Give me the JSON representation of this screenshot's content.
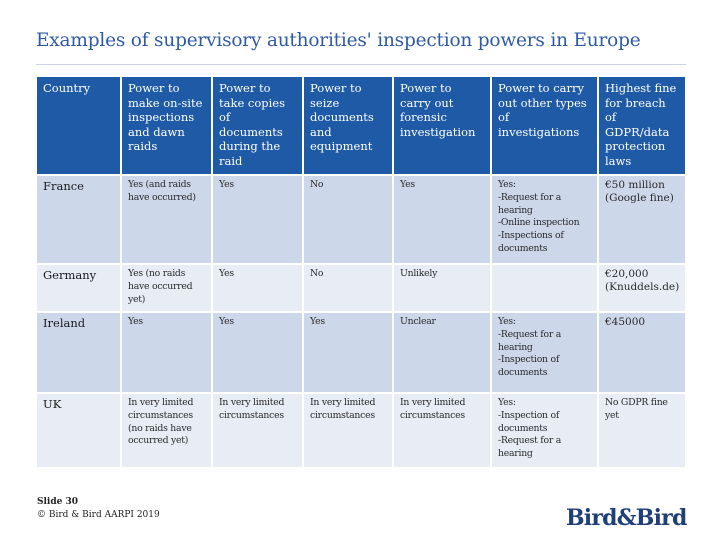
{
  "title": "Examples of supervisory authorities' inspection powers in Europe",
  "table": {
    "headers": [
      "Country",
      "Power to make on-site inspections and dawn raids",
      "Power to take copies of documents during the raid",
      "Power to seize documents and equipment",
      "Power to carry out forensic investigation",
      "Power to carry out other types of investigations",
      "Highest fine for breach of GDPR/data protection laws"
    ],
    "rows": [
      [
        "France",
        "Yes (and raids have occurred)",
        "Yes",
        "No",
        "Yes",
        "Yes:\n-Request for a hearing\n-Online inspection\n-Inspections of documents",
        "€50 million (Google fine)"
      ],
      [
        "Germany",
        "Yes (no raids have occurred yet)",
        "Yes",
        "No",
        "Unlikely",
        "",
        "€20,000 (Knuddels.de)"
      ],
      [
        "Ireland",
        "Yes",
        "Yes",
        "Yes",
        "Unclear",
        "Yes:\n-Request for a hearing\n-Inspection of documents",
        "€45000"
      ],
      [
        "UK",
        "In very limited circumstances (no raids have occurred yet)",
        "In very limited circumstances",
        "In very limited circumstances",
        "In very limited circumstances",
        "Yes:\n-Inspection of documents\n-Request for a hearing",
        "No GDPR fine yet"
      ]
    ]
  },
  "footer": {
    "slide": "Slide 30",
    "copyright": "© Bird & Bird AARPI 2019"
  },
  "logo": {
    "text_left": "Bird",
    "ampersand": "&",
    "text_right": "Bird"
  },
  "colors": {
    "title": "#2f5aa6",
    "header_bg": "#1f5aa6",
    "row_dark": "#cdd7ea",
    "row_light": "#e7ecf5"
  }
}
